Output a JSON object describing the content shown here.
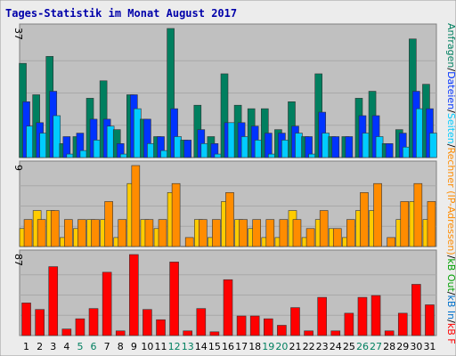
{
  "chart_data": {
    "type": "bar",
    "title": "Tages-Statistik im Monat August 2017",
    "categories": [
      "1",
      "2",
      "3",
      "4",
      "5",
      "6",
      "7",
      "8",
      "9",
      "10",
      "11",
      "12",
      "13",
      "14",
      "15",
      "16",
      "17",
      "18",
      "19",
      "20",
      "21",
      "22",
      "23",
      "24",
      "25",
      "26",
      "27",
      "28",
      "29",
      "30",
      "31"
    ],
    "weekend_days": [
      "5",
      "6",
      "12",
      "13",
      "19",
      "20",
      "26",
      "27"
    ],
    "panels": [
      {
        "max_label": "37",
        "ylim": [
          0,
          37
        ],
        "series": [
          {
            "name": "Anfragen",
            "color": "#007f5f",
            "values": [
              27,
              18,
              29,
              4,
              6,
              17,
              22,
              8,
              18,
              11,
              6,
              37,
              5,
              15,
              6,
              24,
              15,
              14,
              14,
              8,
              16,
              6,
              24,
              6,
              6,
              17,
              19,
              4,
              8,
              34,
              21
            ]
          },
          {
            "name": "Dateien",
            "color": "#0033ff",
            "values": [
              16,
              10,
              19,
              6,
              7,
              11,
              11,
              4,
              18,
              11,
              6,
              14,
              5,
              8,
              4,
              10,
              10,
              9,
              7,
              7,
              9,
              6,
              13,
              6,
              6,
              12,
              12,
              4,
              7,
              19,
              14
            ]
          },
          {
            "name": "Seiten",
            "color": "#00ccff",
            "values": [
              9,
              7,
              12,
              1,
              2,
              5,
              9,
              1,
              14,
              4,
              2,
              6,
              0,
              4,
              1,
              10,
              6,
              5,
              1,
              5,
              7,
              1,
              7,
              0,
              0,
              7,
              6,
              0,
              3,
              14,
              7
            ]
          }
        ]
      },
      {
        "max_label": "9",
        "ylim": [
          0,
          9
        ],
        "series": [
          {
            "name": "Rechner (IP-Adressen)",
            "color": "#ffcc00",
            "values": [
              2,
              4,
              4,
              1,
              2,
              3,
              3,
              1,
              7,
              3,
              2,
              6,
              0,
              3,
              1,
              5,
              3,
              2,
              1,
              1,
              4,
              1,
              3,
              2,
              1,
              4,
              4,
              0,
              3,
              5,
              3
            ]
          },
          {
            "name": "kB Out",
            "color": "#ff8c00",
            "values": [
              3,
              3,
              4,
              3,
              3,
              3,
              5,
              3,
              9,
              3,
              3,
              7,
              1,
              3,
              3,
              6,
              3,
              3,
              3,
              3,
              3,
              2,
              4,
              2,
              3,
              6,
              7,
              1,
              5,
              7,
              5
            ]
          }
        ]
      },
      {
        "max_label": "87",
        "ylim": [
          0,
          87
        ],
        "series": [
          {
            "name": "kB F",
            "color": "#ff0000",
            "values": [
              35,
              28,
              74,
              7,
              18,
              29,
              68,
              5,
              87,
              28,
              17,
              79,
              5,
              29,
              4,
              60,
              21,
              21,
              18,
              11,
              30,
              5,
              41,
              5,
              24,
              41,
              43,
              5,
              24,
              55,
              33
            ]
          }
        ]
      }
    ],
    "right_legend": [
      {
        "text": "Anfragen",
        "color": "#007f5f"
      },
      {
        "text": "/",
        "color": "#000000"
      },
      {
        "text": "Dateien",
        "color": "#0033ff"
      },
      {
        "text": "/",
        "color": "#000000"
      },
      {
        "text": "Seiten",
        "color": "#00ccff"
      },
      {
        "text": "/",
        "color": "#000000"
      },
      {
        "text": "Rechner (IP-Adressen)",
        "color": "#ff8c00"
      },
      {
        "text": "/",
        "color": "#000000"
      },
      {
        "text": "kB Out",
        "color": "#00a000"
      },
      {
        "text": "/",
        "color": "#000000"
      },
      {
        "text": "kB In",
        "color": "#0070cc"
      },
      {
        "text": "/",
        "color": "#000000"
      },
      {
        "text": "kB F",
        "color": "#ff0000"
      }
    ],
    "tick_color": "#000000",
    "weekend_tick_color": "#007f5f",
    "plot_background": "#c0c0c0",
    "frame_background": "#e6e6e6"
  }
}
